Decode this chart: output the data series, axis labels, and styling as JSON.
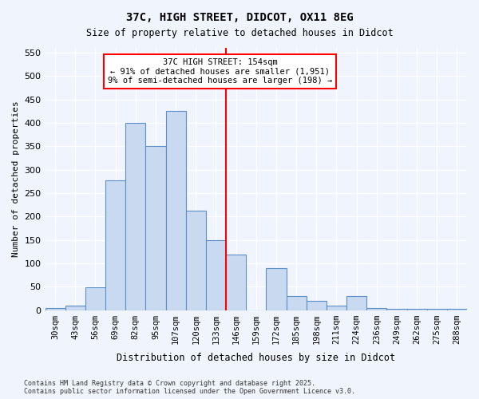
{
  "title": "37C, HIGH STREET, DIDCOT, OX11 8EG",
  "subtitle": "Size of property relative to detached houses in Didcot",
  "xlabel": "Distribution of detached houses by size in Didcot",
  "ylabel": "Number of detached properties",
  "footer": "Contains HM Land Registry data © Crown copyright and database right 2025.\nContains public sector information licensed under the Open Government Licence v3.0.",
  "bin_labels": [
    "30sqm",
    "43sqm",
    "56sqm",
    "69sqm",
    "82sqm",
    "95sqm",
    "107sqm",
    "120sqm",
    "133sqm",
    "146sqm",
    "159sqm",
    "172sqm",
    "185sqm",
    "198sqm",
    "211sqm",
    "224sqm",
    "236sqm",
    "249sqm",
    "262sqm",
    "275sqm",
    "288sqm"
  ],
  "bar_values": [
    5,
    10,
    48,
    277,
    400,
    350,
    425,
    213,
    150,
    118,
    0,
    90,
    30,
    20,
    10,
    30,
    5,
    3,
    3,
    3,
    3
  ],
  "bar_color": "#c8d9f0",
  "bar_edge_color": "#5b8fc9",
  "marker_value": 154,
  "marker_bin_index": 9,
  "marker_color": "red",
  "annotation_text": "37C HIGH STREET: 154sqm\n← 91% of detached houses are smaller (1,951)\n9% of semi-detached houses are larger (198) →",
  "ylim": [
    0,
    560
  ],
  "yticks": [
    0,
    50,
    100,
    150,
    200,
    250,
    300,
    350,
    400,
    450,
    500,
    550
  ],
  "background_color": "#f0f4fc",
  "grid_color": "#ffffff",
  "annotation_box_color": "#ffffff",
  "annotation_box_edge_color": "red"
}
